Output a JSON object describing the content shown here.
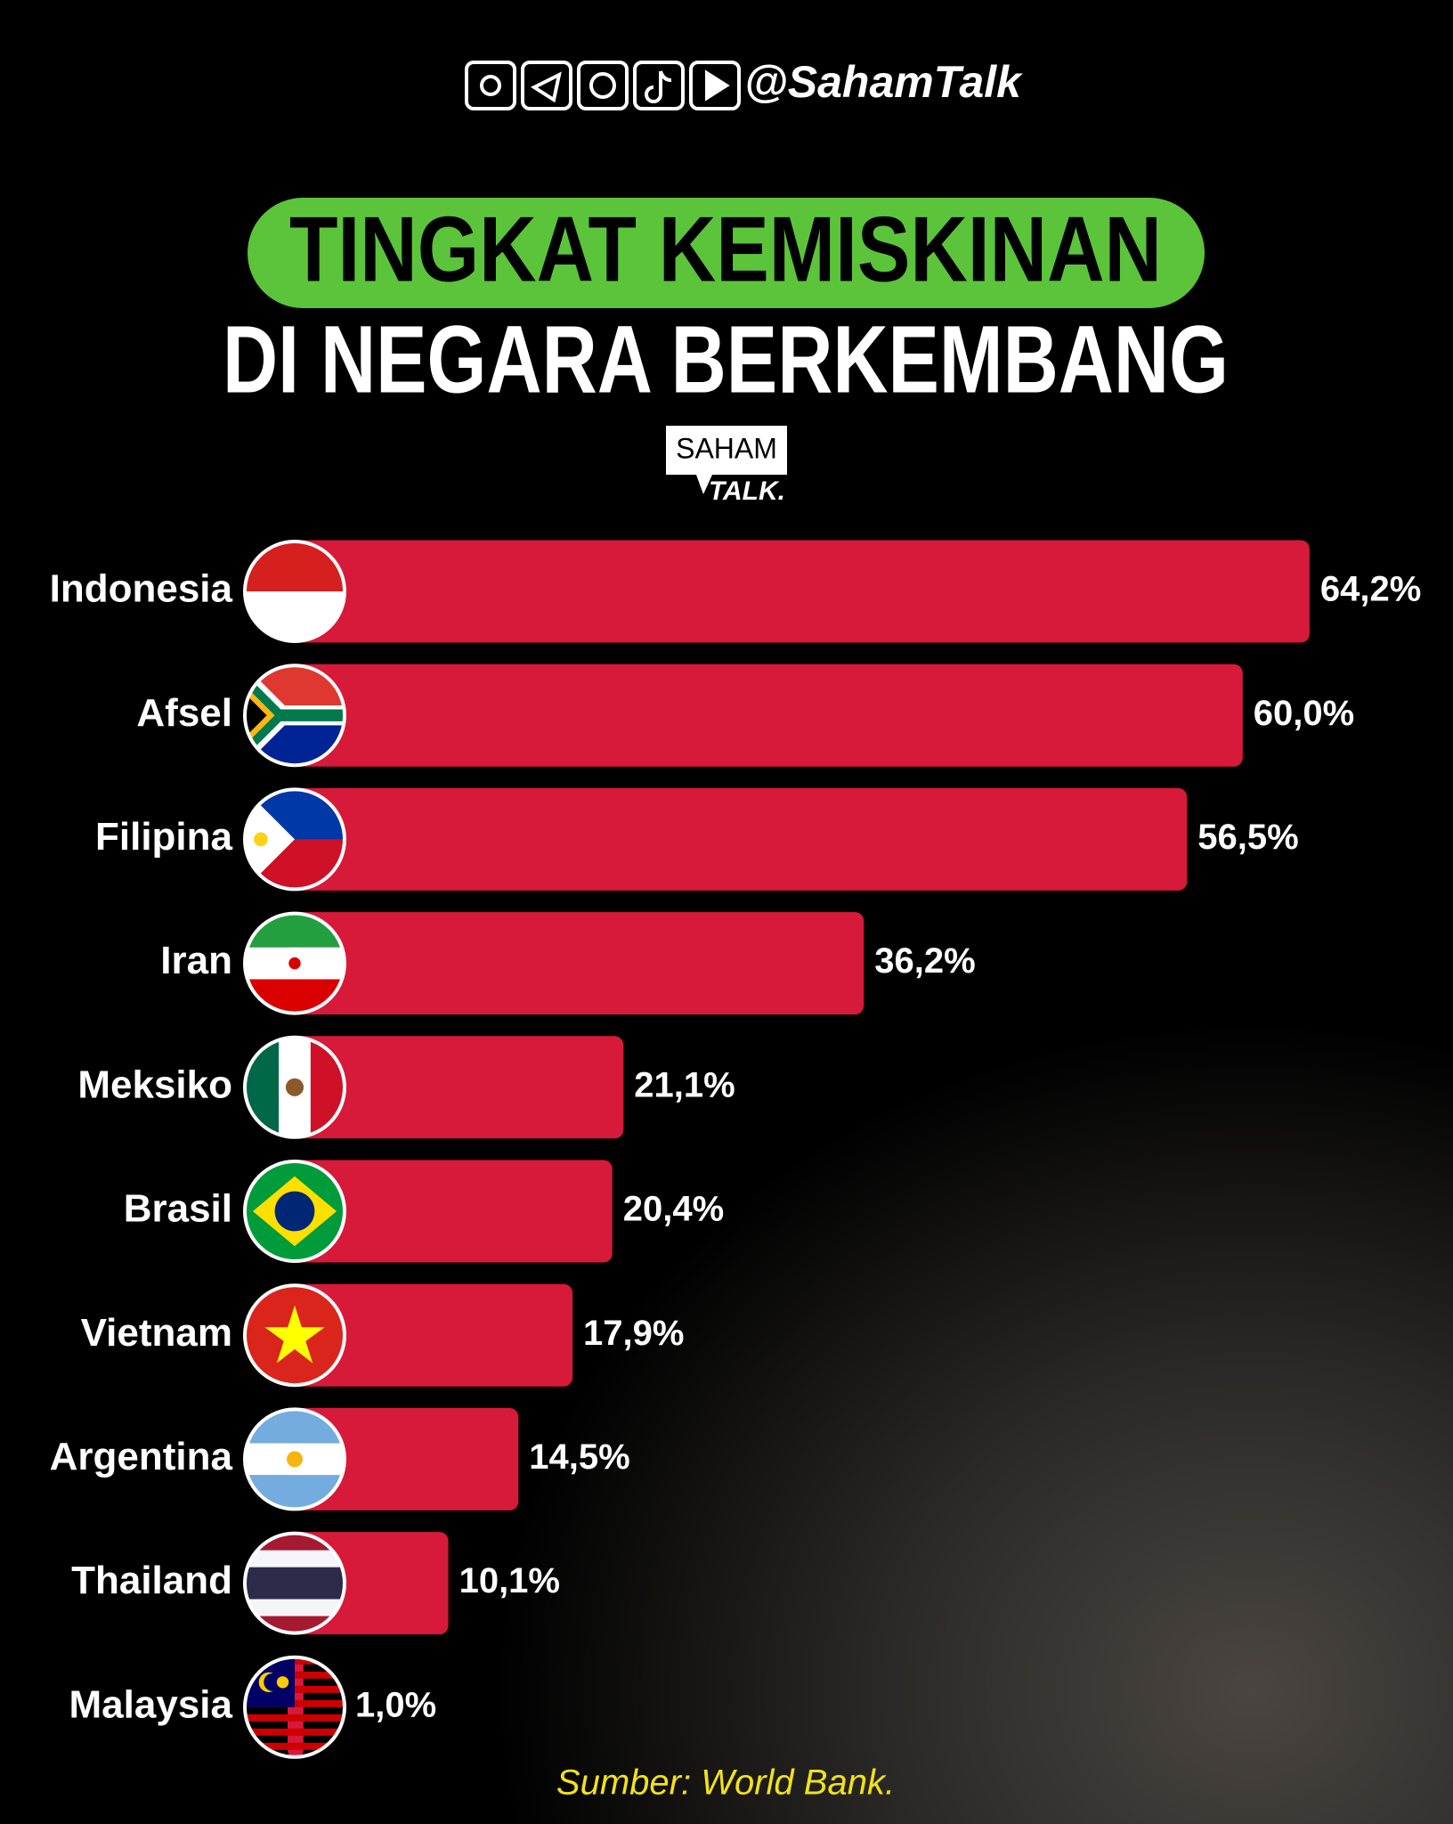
{
  "header": {
    "handle": "@SahamTalk",
    "logo_top": "SAHAM",
    "logo_bottom": "TALK."
  },
  "chart_data": {
    "type": "bar",
    "title": "TINGKAT KEMISKINAN",
    "subtitle": "DI NEGARA BERKEMBANG",
    "categories": [
      "Indonesia",
      "Afsel",
      "Filipina",
      "Iran",
      "Meksiko",
      "Brasil",
      "Vietnam",
      "Argentina",
      "Thailand",
      "Malaysia"
    ],
    "values": [
      64.2,
      60.0,
      56.5,
      36.2,
      21.1,
      20.4,
      17.9,
      14.5,
      10.1,
      1.0
    ],
    "value_labels": [
      "64,2%",
      "60,0%",
      "56,5%",
      "36,2%",
      "21,1%",
      "20,4%",
      "17,9%",
      "14,5%",
      "10,1%",
      "1,0%"
    ],
    "color": "#d7193a",
    "source": "Sumber: World Bank."
  }
}
